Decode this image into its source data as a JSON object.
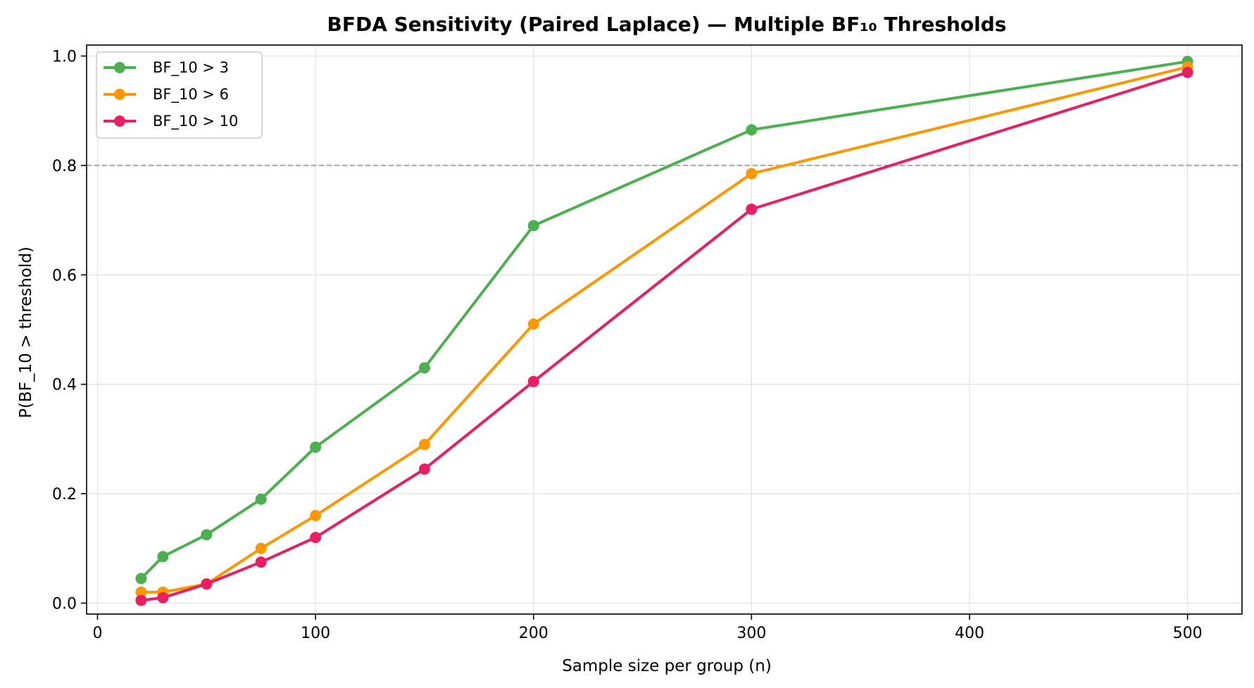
{
  "chart_data": {
    "type": "line",
    "title": "BFDA Sensitivity (Paired Laplace) — Multiple BF₁₀ Thresholds",
    "xlabel": "Sample size per group (n)",
    "ylabel": "P(BF_10 > threshold)",
    "x": [
      20,
      30,
      50,
      75,
      100,
      150,
      200,
      300,
      500
    ],
    "xlim": [
      -5,
      525
    ],
    "ylim": [
      -0.02,
      1.02
    ],
    "xticks": [
      0,
      100,
      200,
      300,
      400,
      500
    ],
    "yticks": [
      0.0,
      0.2,
      0.4,
      0.6,
      0.8,
      1.0
    ],
    "xtick_labels": [
      "0",
      "100",
      "200",
      "300",
      "400",
      "500"
    ],
    "ytick_labels": [
      "0.0",
      "0.2",
      "0.4",
      "0.6",
      "0.8",
      "1.0"
    ],
    "grid": true,
    "reference_line": {
      "y": 0.8,
      "style": "dashed",
      "color": "#a6a6a6"
    },
    "legend_position": "top-left",
    "series": [
      {
        "name": "BF_10 > 3",
        "color": "#4caf50",
        "values": [
          0.045,
          0.085,
          0.125,
          0.19,
          0.285,
          0.43,
          0.69,
          0.865,
          0.99
        ]
      },
      {
        "name": "BF_10 > 6",
        "color": "#ff9800",
        "values": [
          0.02,
          0.02,
          0.035,
          0.1,
          0.16,
          0.29,
          0.51,
          0.785,
          0.98
        ]
      },
      {
        "name": "BF_10 > 10",
        "color": "#e91e63",
        "values": [
          0.005,
          0.01,
          0.035,
          0.075,
          0.12,
          0.245,
          0.405,
          0.72,
          0.97
        ]
      }
    ]
  }
}
